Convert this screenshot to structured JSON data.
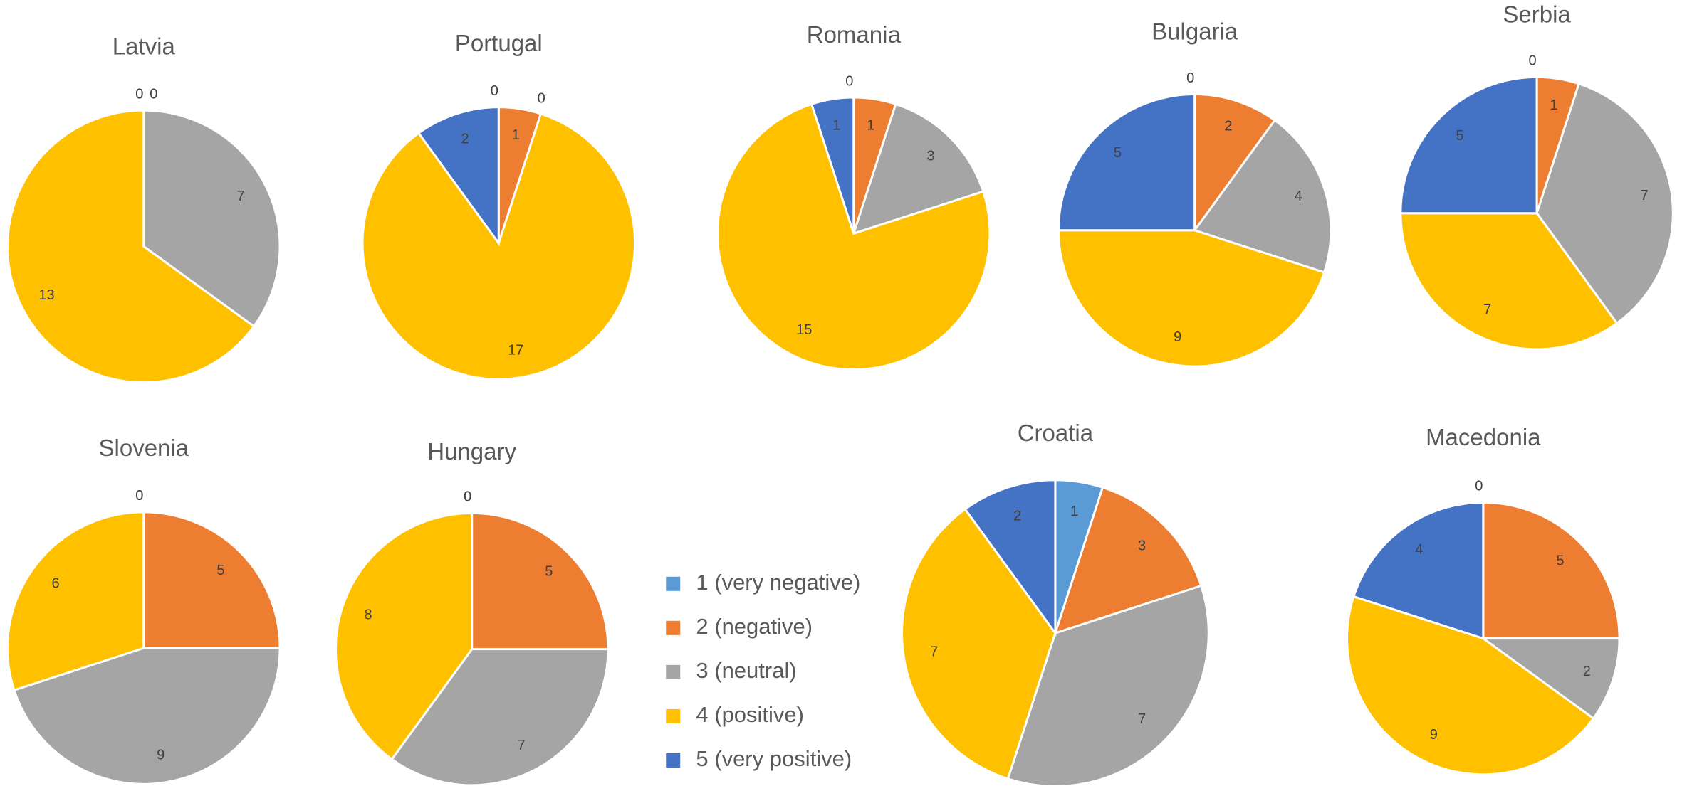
{
  "legend": {
    "categories": [
      "1 (very negative)",
      "2 (negative)",
      "3 (neutral)",
      "4 (positive)",
      "5 (very positive)"
    ],
    "colors": [
      "#5b9bd5",
      "#ed7d31",
      "#a5a5a5",
      "#ffc000",
      "#4472c4"
    ]
  },
  "chart_data": [
    {
      "type": "pie",
      "title": "Latvia",
      "values": [
        0,
        0,
        7,
        13,
        0
      ]
    },
    {
      "type": "pie",
      "title": "Portugal",
      "values": [
        0,
        1,
        0,
        17,
        2
      ]
    },
    {
      "type": "pie",
      "title": "Romania",
      "values": [
        0,
        1,
        3,
        15,
        1
      ]
    },
    {
      "type": "pie",
      "title": "Bulgaria",
      "values": [
        0,
        2,
        4,
        9,
        5
      ]
    },
    {
      "type": "pie",
      "title": "Serbia",
      "values": [
        0,
        1,
        7,
        7,
        5
      ]
    },
    {
      "type": "pie",
      "title": "Slovenia",
      "values": [
        0,
        5,
        9,
        6,
        0
      ]
    },
    {
      "type": "pie",
      "title": "Hungary",
      "values": [
        0,
        5,
        7,
        8,
        0
      ]
    },
    {
      "type": "pie",
      "title": "Croatia",
      "values": [
        1,
        3,
        7,
        7,
        2
      ]
    },
    {
      "type": "pie",
      "title": "Macedonia",
      "values": [
        0,
        5,
        2,
        9,
        4
      ]
    }
  ]
}
